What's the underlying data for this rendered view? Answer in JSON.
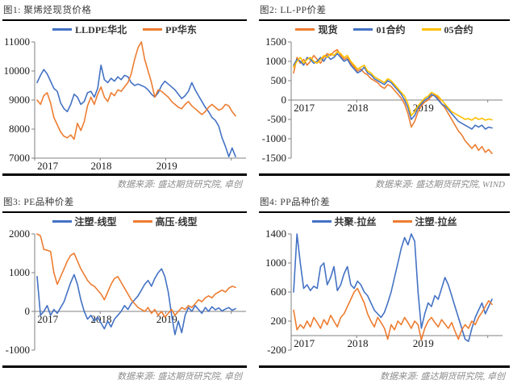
{
  "colors": {
    "blue": "#4472C4",
    "orange": "#ED7D31",
    "yellow": "#FFC000",
    "axis": "#808080",
    "rule": "#000000",
    "title_text": "#3a3a3a",
    "source_text": "#8c8c8c"
  },
  "chart_data": [
    {
      "id": "fig1",
      "type": "line",
      "title": "图1: 聚烯烃现货价格",
      "source": "数据来源: 盛达期货研究院, 卓创",
      "x_tick_labels": [
        "2017",
        "2018",
        "2019"
      ],
      "ylim": [
        7000,
        11000
      ],
      "yticks": [
        11000,
        10000,
        9000,
        8000,
        7000
      ],
      "axis_cross": 7000,
      "grid": false,
      "legend_position": "top",
      "series": [
        {
          "name": "LLDPE华北",
          "color": "#4472C4",
          "values": [
            9600,
            9850,
            10050,
            9900,
            9650,
            9400,
            9300,
            8900,
            8700,
            8600,
            8850,
            9200,
            9100,
            8850,
            8950,
            9250,
            9300,
            9100,
            9400,
            10200,
            9700,
            9600,
            9750,
            9650,
            9800,
            9700,
            9850,
            9800,
            9600,
            9500,
            9550,
            9500,
            9450,
            9350,
            9200,
            9100,
            9250,
            9500,
            9650,
            9550,
            9450,
            9350,
            9200,
            9050,
            9150,
            9300,
            9600,
            9350,
            9150,
            8950,
            8750,
            8600,
            8400,
            8300,
            8100,
            7700,
            7400,
            7050,
            7350,
            7050
          ]
        },
        {
          "name": "PP华东",
          "color": "#ED7D31",
          "values": [
            9000,
            8850,
            9150,
            9250,
            8900,
            8400,
            8150,
            7900,
            7750,
            7700,
            7800,
            7650,
            8200,
            7950,
            8250,
            8800,
            9100,
            8850,
            9200,
            9450,
            9100,
            8950,
            9250,
            9150,
            9350,
            9300,
            9450,
            9600,
            9900,
            10400,
            10800,
            11000,
            10400,
            10000,
            9600,
            9100,
            9350,
            9300,
            9200,
            9100,
            8950,
            8850,
            8750,
            8700,
            8850,
            8950,
            8800,
            8700,
            8600,
            8500,
            8600,
            8750,
            8850,
            8750,
            8650,
            8700,
            8850,
            8800,
            8600,
            8450
          ]
        }
      ]
    },
    {
      "id": "fig2",
      "type": "line",
      "title": "图2: LL-PP价差",
      "source": "数据来源: 盛达期货研究院, WIND",
      "x_tick_labels": [
        "2017",
        "2018",
        "2019"
      ],
      "ylim": [
        -1500,
        1500
      ],
      "yticks": [
        1500,
        1000,
        500,
        0,
        -500,
        -1000,
        -1500
      ],
      "axis_cross": 0,
      "grid": false,
      "legend_position": "top",
      "series": [
        {
          "name": "现货",
          "color": "#ED7D31",
          "values": [
            700,
            1100,
            950,
            1050,
            900,
            1000,
            1150,
            1050,
            950,
            1100,
            1200,
            1150,
            1250,
            1300,
            1150,
            1050,
            1100,
            950,
            850,
            750,
            800,
            700,
            650,
            550,
            500,
            450,
            350,
            300,
            400,
            350,
            250,
            150,
            50,
            -100,
            -350,
            -700,
            -550,
            -300,
            -150,
            -50,
            0,
            100,
            150,
            50,
            -100,
            -200,
            -350,
            -500,
            -650,
            -800,
            -900,
            -1050,
            -1150,
            -1250,
            -1150,
            -1300,
            -1200,
            -1350,
            -1280,
            -1380
          ]
        },
        {
          "name": "01合约",
          "color": "#4472C4",
          "values": [
            900,
            1050,
            1000,
            900,
            1100,
            1050,
            950,
            1000,
            1100,
            1000,
            1150,
            1050,
            1100,
            1200,
            1100,
            1000,
            1050,
            900,
            800,
            700,
            750,
            850,
            700,
            650,
            550,
            500,
            450,
            400,
            500,
            450,
            350,
            250,
            150,
            0,
            -200,
            -500,
            -400,
            -200,
            -100,
            0,
            50,
            150,
            100,
            0,
            -100,
            -150,
            -250,
            -350,
            -450,
            -550,
            -600,
            -650,
            -700,
            -750,
            -650,
            -700,
            -650,
            -750,
            -700,
            -720
          ]
        },
        {
          "name": "05合约",
          "color": "#FFC000",
          "values": [
            850,
            1000,
            1100,
            950,
            1050,
            1100,
            1000,
            950,
            1050,
            1150,
            1100,
            1200,
            1150,
            1250,
            1200,
            1100,
            1150,
            1000,
            900,
            800,
            850,
            900,
            750,
            700,
            600,
            550,
            500,
            450,
            550,
            500,
            400,
            300,
            200,
            100,
            -100,
            -400,
            -300,
            -150,
            -50,
            50,
            100,
            200,
            150,
            100,
            0,
            -100,
            -200,
            -300,
            -350,
            -400,
            -450,
            -500,
            -480,
            -520,
            -450,
            -500,
            -470,
            -520,
            -490,
            -510
          ]
        }
      ]
    },
    {
      "id": "fig3",
      "type": "line",
      "title": "图3: PE品种价差",
      "source": "数据来源: 盛达期货研究院, 卓创",
      "x_tick_labels": [
        "2017",
        "2018",
        "2019"
      ],
      "ylim": [
        -1000,
        2000
      ],
      "yticks": [
        2000,
        1000,
        0,
        -1000
      ],
      "axis_cross": 0,
      "grid": false,
      "legend_position": "top",
      "series": [
        {
          "name": "注塑-线型",
          "color": "#4472C4",
          "values": [
            900,
            -100,
            0,
            150,
            -100,
            50,
            -50,
            100,
            250,
            500,
            750,
            950,
            700,
            300,
            0,
            -200,
            -100,
            -250,
            -150,
            -300,
            -450,
            -250,
            -400,
            -200,
            -100,
            0,
            150,
            50,
            200,
            300,
            400,
            550,
            700,
            800,
            650,
            850,
            1000,
            1100,
            900,
            500,
            -100,
            -600,
            -250,
            -550,
            -100,
            100,
            0,
            150,
            50,
            -50,
            100,
            0,
            120,
            40,
            90,
            10,
            60,
            100,
            30,
            70
          ]
        },
        {
          "name": "高压-线型",
          "color": "#ED7D31",
          "values": [
            2000,
            1950,
            1600,
            1580,
            1550,
            1000,
            700,
            900,
            1100,
            1300,
            1450,
            1500,
            1300,
            1100,
            950,
            800,
            700,
            650,
            550,
            450,
            300,
            500,
            700,
            850,
            900,
            750,
            600,
            450,
            300,
            200,
            100,
            50,
            0,
            100,
            -50,
            50,
            -100,
            0,
            -150,
            -50,
            50,
            -100,
            0,
            100,
            50,
            150,
            100,
            200,
            300,
            250,
            350,
            400,
            350,
            450,
            500,
            550,
            500,
            600,
            650,
            620
          ]
        }
      ]
    },
    {
      "id": "fig4",
      "type": "line",
      "title": "图4: PP品种价差",
      "source": "数据来源: 盛达期货研究院, 卓创",
      "x_tick_labels": [
        "2017",
        "2018",
        "2019"
      ],
      "ylim": [
        -200,
        1400
      ],
      "yticks": [
        1400,
        1000,
        600,
        200,
        -200
      ],
      "axis_cross": 0,
      "grid": false,
      "legend_position": "top",
      "series": [
        {
          "name": "共聚-拉丝",
          "color": "#4472C4",
          "values": [
            600,
            1400,
            1000,
            650,
            700,
            620,
            680,
            650,
            950,
            1000,
            700,
            800,
            950,
            620,
            700,
            850,
            950,
            700,
            650,
            750,
            700,
            600,
            550,
            450,
            350,
            300,
            250,
            320,
            450,
            600,
            800,
            1000,
            1200,
            1350,
            1250,
            1400,
            1300,
            600,
            100,
            300,
            450,
            400,
            550,
            500,
            650,
            800,
            700,
            550,
            400,
            250,
            100,
            -50,
            -80,
            100,
            250,
            350,
            450,
            300,
            400,
            500
          ]
        },
        {
          "name": "注塑-拉丝",
          "color": "#ED7D31",
          "values": [
            350,
            80,
            150,
            100,
            200,
            120,
            250,
            180,
            100,
            220,
            150,
            280,
            200,
            120,
            250,
            300,
            400,
            500,
            600,
            650,
            550,
            450,
            300,
            200,
            120,
            250,
            180,
            100,
            -50,
            150,
            80,
            200,
            150,
            250,
            180,
            100,
            200,
            150,
            -60,
            100,
            200,
            250,
            180,
            120,
            220,
            160,
            100,
            180,
            60,
            -50,
            80,
            150,
            100,
            200,
            150,
            250,
            320,
            400,
            480,
            430
          ]
        }
      ]
    }
  ]
}
